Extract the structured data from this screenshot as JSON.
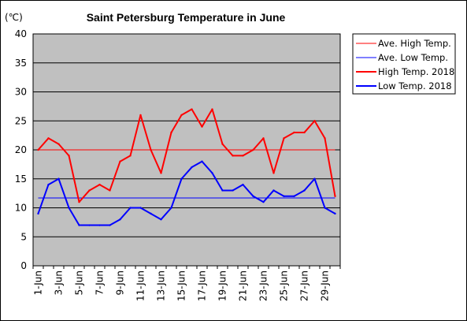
{
  "chart_data": {
    "type": "line",
    "title": "Saint Petersburg Temperature in June",
    "unit_label": "(℃)",
    "ylim": [
      0,
      40
    ],
    "y_ticks": [
      0,
      5,
      10,
      15,
      20,
      25,
      30,
      35,
      40
    ],
    "grid": "horizontal",
    "legend_position": "right",
    "x_tick_labels": [
      "1-Jun",
      "3-Jun",
      "5-Jun",
      "7-Jun",
      "9-Jun",
      "11-Jun",
      "13-Jun",
      "15-Jun",
      "17-Jun",
      "19-Jun",
      "21-Jun",
      "23-Jun",
      "25-Jun",
      "27-Jun",
      "29-Jun"
    ],
    "categories": [
      "1-Jun",
      "2-Jun",
      "3-Jun",
      "4-Jun",
      "5-Jun",
      "6-Jun",
      "7-Jun",
      "8-Jun",
      "9-Jun",
      "10-Jun",
      "11-Jun",
      "12-Jun",
      "13-Jun",
      "14-Jun",
      "15-Jun",
      "16-Jun",
      "17-Jun",
      "18-Jun",
      "19-Jun",
      "20-Jun",
      "21-Jun",
      "22-Jun",
      "23-Jun",
      "24-Jun",
      "25-Jun",
      "26-Jun",
      "27-Jun",
      "28-Jun",
      "29-Jun",
      "30-Jun"
    ],
    "series": [
      {
        "name": "Ave. High Temp.",
        "color": "#ff0000",
        "style": "thin",
        "values": [
          20,
          20,
          20,
          20,
          20,
          20,
          20,
          20,
          20,
          20,
          20,
          20,
          20,
          20,
          20,
          20,
          20,
          20,
          20,
          20,
          20,
          20,
          20,
          20,
          20,
          20,
          20,
          20,
          20,
          20
        ]
      },
      {
        "name": "Ave. Low Temp.",
        "color": "#0000ff",
        "style": "thin",
        "values": [
          11.7,
          11.7,
          11.7,
          11.7,
          11.7,
          11.7,
          11.7,
          11.7,
          11.7,
          11.7,
          11.7,
          11.7,
          11.7,
          11.7,
          11.7,
          11.7,
          11.7,
          11.7,
          11.7,
          11.7,
          11.7,
          11.7,
          11.7,
          11.7,
          11.7,
          11.7,
          11.7,
          11.7,
          11.7,
          11.7
        ]
      },
      {
        "name": "High Temp. 2018",
        "color": "#ff0000",
        "style": "thick",
        "values": [
          20,
          22,
          21,
          19,
          11,
          13,
          14,
          13,
          18,
          19,
          26,
          20,
          16,
          23,
          26,
          27,
          24,
          27,
          21,
          19,
          19,
          20,
          22,
          16,
          22,
          23,
          23,
          25,
          22,
          12
        ]
      },
      {
        "name": "Low Temp. 2018",
        "color": "#0000ff",
        "style": "thick",
        "values": [
          9,
          14,
          15,
          10,
          7,
          7,
          7,
          7,
          8,
          10,
          10,
          9,
          8,
          10,
          15,
          17,
          18,
          16,
          13,
          13,
          14,
          12,
          11,
          13,
          12,
          12,
          13,
          15,
          10,
          9
        ]
      }
    ]
  }
}
